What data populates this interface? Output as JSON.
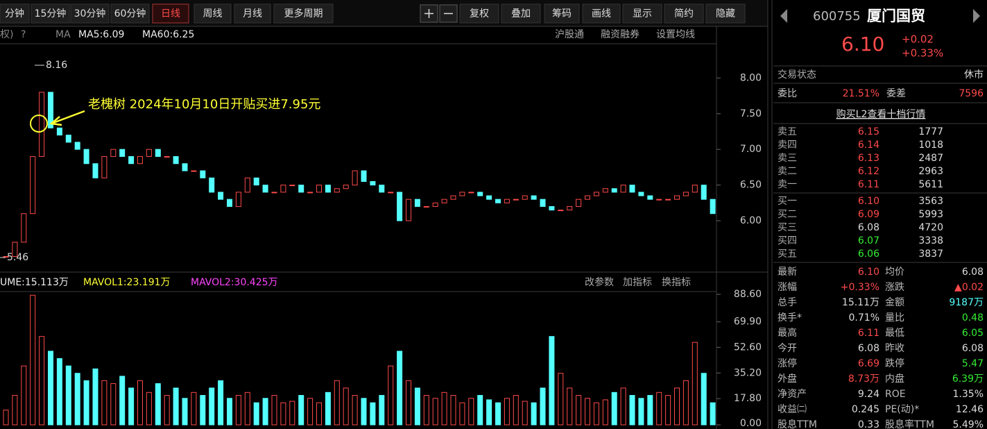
{
  "toolbar": {
    "tabs": [
      "分钟",
      "15分钟",
      "30分钟",
      "60分钟",
      "日线",
      "周线",
      "月线",
      "更多周期"
    ],
    "active_tab": 4,
    "tools": [
      "复权",
      "叠加",
      "筹码",
      "画线",
      "显示",
      "简约",
      "隐藏"
    ]
  },
  "price_chart": {
    "type": "candlestick",
    "header": [
      "权)",
      "?",
      "MA",
      "MA5:6.09",
      "MA60:6.25"
    ],
    "header_right": [
      "沪股通",
      "融资融券",
      "设置均线"
    ],
    "high_label": "8.16",
    "low_label": "5.46",
    "annotation": "老槐树 2024年10月10日开贴买进7.95元",
    "ylim": [
      5.3,
      8.47
    ],
    "yticks": [
      {
        "value": 6,
        "label": "6.00"
      },
      {
        "value": 6.5,
        "label": "6.50"
      },
      {
        "value": 7,
        "label": "7.00"
      },
      {
        "value": 7.5,
        "label": "7.50"
      },
      {
        "value": 8,
        "label": "8.00"
      }
    ],
    "up_color": "#ff4a4a",
    "down_color": "#54ffff",
    "values": [
      5.5,
      5.7,
      6.1,
      6.9,
      7.8,
      7.3,
      7.2,
      7.1,
      7.0,
      6.8,
      6.6,
      6.9,
      7.0,
      6.9,
      6.8,
      6.9,
      7.0,
      6.9,
      6.9,
      6.8,
      6.7,
      6.7,
      6.6,
      6.4,
      6.3,
      6.2,
      6.4,
      6.6,
      6.5,
      6.4,
      6.4,
      6.5,
      6.5,
      6.4,
      6.4,
      6.5,
      6.4,
      6.45,
      6.5,
      6.7,
      6.55,
      6.5,
      6.4,
      6.4,
      6.0,
      6.3,
      6.2,
      6.2,
      6.25,
      6.3,
      6.35,
      6.4,
      6.4,
      6.35,
      6.3,
      6.25,
      6.3,
      6.3,
      6.35,
      6.3,
      6.2,
      6.15,
      6.15,
      6.2,
      6.3,
      6.35,
      6.4,
      6.45,
      6.4,
      6.5,
      6.4,
      6.35,
      6.3,
      6.3,
      6.3,
      6.35,
      6.4,
      6.5,
      6.3,
      6.1
    ]
  },
  "volume_chart": {
    "type": "bar",
    "header": [
      "UME:15.113万",
      "MAVOL1:23.191万",
      "MAVOL2:30.425万"
    ],
    "header_right": [
      "改参数",
      "加指标",
      "换指标"
    ],
    "ylim": [
      0,
      88.6
    ],
    "yticks": [
      {
        "value": 0,
        "label": "0.00"
      },
      {
        "value": 17.8,
        "label": "17.80"
      },
      {
        "value": 35.2,
        "label": "35.20"
      },
      {
        "value": 52.6,
        "label": "52.60"
      },
      {
        "value": 69.9,
        "label": "69.90"
      },
      {
        "value": 88.6,
        "label": "88.60"
      }
    ],
    "values": [
      10,
      20,
      40,
      88,
      60,
      50,
      45,
      40,
      35,
      30,
      38,
      30,
      28,
      33,
      25,
      30,
      22,
      28,
      20,
      25,
      18,
      22,
      20,
      25,
      30,
      18,
      20,
      22,
      15,
      18,
      20,
      15,
      16,
      20,
      18,
      15,
      22,
      30,
      25,
      20,
      18,
      15,
      20,
      40,
      50,
      30,
      25,
      20,
      18,
      22,
      20,
      15,
      18,
      20,
      17,
      15,
      18,
      20,
      16,
      15,
      25,
      60,
      35,
      25,
      20,
      18,
      15,
      17,
      22,
      25,
      20,
      18,
      20,
      22,
      20,
      25,
      30,
      56,
      35,
      15
    ]
  },
  "panel": {
    "code": "600755",
    "name": "厦门国贸",
    "price": "6.10",
    "change": "+0.02",
    "change_pct": "+0.33%",
    "status_label": "交易状态",
    "status": "休市",
    "ratio_label": "委比",
    "ratio": "21.51%",
    "diff_label": "委差",
    "diff": "7596",
    "l2_link": "购买L2查看十档行情",
    "sells": [
      {
        "label": "卖五",
        "price": "6.15",
        "vol": "1777",
        "color": "#ff4a4a"
      },
      {
        "label": "卖四",
        "price": "6.14",
        "vol": "1018",
        "color": "#ff4a4a"
      },
      {
        "label": "卖三",
        "price": "6.13",
        "vol": "2487",
        "color": "#ff4a4a"
      },
      {
        "label": "卖二",
        "price": "6.12",
        "vol": "2963",
        "color": "#ff4a4a"
      },
      {
        "label": "卖一",
        "price": "6.11",
        "vol": "5611",
        "color": "#ff4a4a"
      }
    ],
    "buys": [
      {
        "label": "买一",
        "price": "6.10",
        "vol": "3563",
        "color": "#ff4a4a"
      },
      {
        "label": "买二",
        "price": "6.09",
        "vol": "5993",
        "color": "#ff4a4a"
      },
      {
        "label": "买三",
        "price": "6.08",
        "vol": "4720",
        "color": "#dddddd"
      },
      {
        "label": "买四",
        "price": "6.07",
        "vol": "3338",
        "color": "#33ee33"
      },
      {
        "label": "买五",
        "price": "6.06",
        "vol": "3837",
        "color": "#33ee33"
      }
    ],
    "stats": [
      [
        {
          "label": "最新",
          "value": "6.10",
          "color": "#ff4a4a"
        },
        {
          "label": "均价",
          "value": "6.08",
          "color": "#dddddd"
        }
      ],
      [
        {
          "label": "涨幅",
          "value": "+0.33%",
          "color": "#ff4a4a"
        },
        {
          "label": "涨跌",
          "value": "▲0.02",
          "color": "#ff4a4a"
        }
      ],
      [
        {
          "label": "总手",
          "value": "15.11万",
          "color": "#dddddd"
        },
        {
          "label": "金额",
          "value": "9187万",
          "color": "#54ffff"
        }
      ],
      [
        {
          "label": "换手*",
          "value": "0.71%",
          "color": "#dddddd"
        },
        {
          "label": "量比",
          "value": "0.48",
          "color": "#33ee33"
        }
      ],
      [
        {
          "label": "最高",
          "value": "6.11",
          "color": "#ff4a4a"
        },
        {
          "label": "最低",
          "value": "6.05",
          "color": "#33ee33"
        }
      ],
      [
        {
          "label": "今开",
          "value": "6.08",
          "color": "#dddddd"
        },
        {
          "label": "昨收",
          "value": "6.08",
          "color": "#dddddd"
        }
      ],
      [
        {
          "label": "涨停",
          "value": "6.69",
          "color": "#ff4a4a"
        },
        {
          "label": "跌停",
          "value": "5.47",
          "color": "#33ee33"
        }
      ],
      [
        {
          "label": "外盘",
          "value": "8.73万",
          "color": "#ff4a4a"
        },
        {
          "label": "内盘",
          "value": "6.39万",
          "color": "#33ee33"
        }
      ],
      [
        {
          "label": "净资产",
          "value": "9.24",
          "color": "#dddddd"
        },
        {
          "label": "ROE",
          "value": "1.35%",
          "color": "#dddddd"
        }
      ],
      [
        {
          "label": "收益㈡",
          "value": "0.245",
          "color": "#dddddd"
        },
        {
          "label": "PE(动)*",
          "value": "12.46",
          "color": "#dddddd"
        }
      ],
      [
        {
          "label": "股息TTM",
          "value": "0.33",
          "color": "#dddddd"
        },
        {
          "label": "股息率TTM",
          "value": "5.49%",
          "color": "#dddddd"
        }
      ]
    ]
  }
}
